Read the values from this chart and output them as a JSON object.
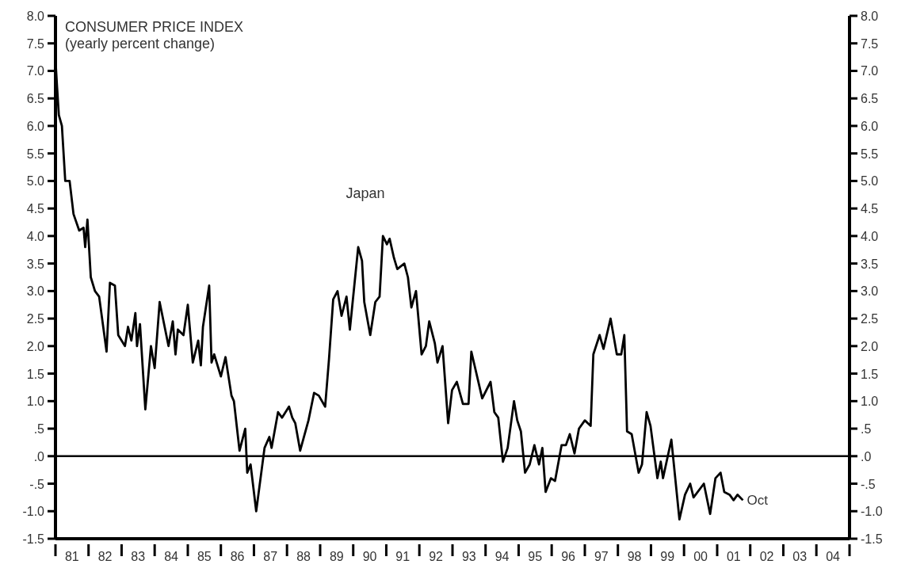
{
  "chart_data": {
    "type": "line",
    "title": "CONSUMER PRICE INDEX",
    "subtitle": "(yearly percent change)",
    "annotations": [
      {
        "text": "Oct",
        "x": "2001-10-12",
        "y": -0.8
      }
    ],
    "series": [
      {
        "name": "Japan",
        "color": "#000000",
        "x": [
          "1981-01-01",
          "1981-01-19",
          "1981-02-07",
          "1981-03-13",
          "1981-04-19",
          "1981-06-06",
          "1981-07-19",
          "1981-09-20",
          "1981-11-07",
          "1981-11-25",
          "1981-12-20",
          "1982-01-26",
          "1982-03-13",
          "1982-04-28",
          "1982-07-19",
          "1982-08-25",
          "1982-10-19",
          "1982-11-25",
          "1983-02-07",
          "1983-03-13",
          "1983-04-19",
          "1983-06-02",
          "1983-06-20",
          "1983-07-23",
          "1983-09-20",
          "1983-11-21",
          "1984-01-01",
          "1984-02-25",
          "1984-06-02",
          "1984-07-19",
          "1984-08-18",
          "1984-09-13",
          "1984-11-14",
          "1985-01-01",
          "1985-02-25",
          "1985-04-26",
          "1985-05-25",
          "1985-06-17",
          "1985-08-25",
          "1985-09-20",
          "1985-10-19",
          "1986-01-01",
          "1986-02-21",
          "1986-04-28",
          "1986-05-25",
          "1986-07-26",
          "1986-09-27",
          "1986-10-19",
          "1986-11-25",
          "1987-01-26",
          "1987-04-28",
          "1987-06-20",
          "1987-07-15",
          "1987-09-24",
          "1987-11-07",
          "1988-01-23",
          "1988-02-28",
          "1988-04-01",
          "1988-05-25",
          "1988-08-25",
          "1988-10-26",
          "1988-12-17",
          "1989-02-25",
          "1989-04-08",
          "1989-05-25",
          "1989-07-12",
          "1989-08-25",
          "1989-10-19",
          "1989-11-25",
          "1990-02-25",
          "1990-04-08",
          "1990-05-03",
          "1990-07-08",
          "1990-09-02",
          "1990-10-19",
          "1990-11-25",
          "1991-01-08",
          "1991-02-07",
          "1991-03-27",
          "1991-05-03",
          "1991-07-19",
          "1991-08-28",
          "1991-10-05",
          "1991-11-25",
          "1992-01-26",
          "1992-03-13",
          "1992-04-19",
          "1992-06-20",
          "1992-07-19",
          "1992-09-13",
          "1992-11-14",
          "1992-12-27",
          "1993-02-18",
          "1993-04-26",
          "1993-06-27",
          "1993-07-28",
          "1993-11-25",
          "1994-02-25",
          "1994-04-08",
          "1994-05-21",
          "1994-07-12",
          "1994-09-02",
          "1994-11-11",
          "1994-12-17",
          "1995-01-26",
          "1995-03-13",
          "1995-05-03",
          "1995-06-24",
          "1995-08-14",
          "1995-09-20",
          "1995-10-26",
          "1995-12-24",
          "1996-02-07",
          "1996-04-19",
          "1996-06-06",
          "1996-07-19",
          "1996-09-09",
          "1996-10-28",
          "1997-01-01",
          "1997-03-06",
          "1997-04-05",
          "1997-06-13",
          "1997-07-26",
          "1997-10-12",
          "1997-12-20",
          "1998-02-07",
          "1998-03-13",
          "1998-04-12",
          "1998-06-02",
          "1998-08-18",
          "1998-09-24",
          "1998-11-14",
          "1998-12-27",
          "1999-03-13",
          "1999-04-19",
          "1999-05-14",
          "1999-08-14",
          "1999-11-11",
          "2000-01-12",
          "2000-03-09",
          "2000-04-15",
          "2000-08-07",
          "2000-10-15",
          "2000-12-13",
          "2001-02-07",
          "2001-03-20",
          "2001-05-18",
          "2001-07-01",
          "2001-08-14",
          "2001-10-12"
        ],
        "values": [
          7.2,
          6.7,
          6.2,
          6.0,
          5.0,
          5.0,
          4.4,
          4.1,
          4.15,
          3.8,
          4.3,
          3.25,
          3.0,
          2.9,
          1.9,
          3.15,
          3.1,
          2.2,
          2.0,
          2.35,
          2.1,
          2.6,
          2.0,
          2.4,
          0.85,
          2.0,
          1.6,
          2.8,
          2.0,
          2.45,
          1.85,
          2.3,
          2.2,
          2.75,
          1.7,
          2.1,
          1.65,
          2.35,
          3.1,
          1.7,
          1.85,
          1.45,
          1.8,
          1.1,
          1.0,
          0.1,
          0.5,
          -0.3,
          -0.15,
          -1.0,
          0.15,
          0.35,
          0.15,
          0.8,
          0.7,
          0.9,
          0.7,
          0.6,
          0.1,
          0.65,
          1.15,
          1.1,
          0.9,
          1.75,
          2.85,
          3.0,
          2.55,
          2.9,
          2.3,
          3.8,
          3.55,
          2.8,
          2.2,
          2.8,
          2.9,
          4.0,
          3.85,
          3.95,
          3.6,
          3.4,
          3.5,
          3.25,
          2.7,
          3.0,
          1.85,
          2.0,
          2.45,
          2.05,
          1.7,
          2.0,
          0.6,
          1.2,
          1.35,
          0.95,
          0.95,
          1.9,
          1.05,
          1.35,
          0.8,
          0.7,
          -0.1,
          0.15,
          1.0,
          0.65,
          0.45,
          -0.3,
          -0.15,
          0.2,
          -0.15,
          0.15,
          -0.65,
          -0.4,
          -0.45,
          0.2,
          0.2,
          0.4,
          0.05,
          0.5,
          0.65,
          0.55,
          1.85,
          2.2,
          1.95,
          2.5,
          1.85,
          1.85,
          2.2,
          0.45,
          0.4,
          -0.3,
          -0.15,
          0.8,
          0.55,
          -0.4,
          -0.1,
          -0.4,
          0.3,
          -1.15,
          -0.7,
          -0.5,
          -0.75,
          -0.5,
          -1.05,
          -0.4,
          -0.3,
          -0.65,
          -0.7,
          -0.8,
          -0.7,
          -0.8
        ]
      }
    ],
    "xlim": [
      "1981-01-01",
      "2005-01-01"
    ],
    "xticks": [
      {
        "value": "1981-01-01",
        "label": null
      },
      {
        "value": "1981-07-02",
        "label": "81"
      },
      {
        "value": "1982-01-01",
        "label": null
      },
      {
        "value": "1982-07-02",
        "label": "82"
      },
      {
        "value": "1983-01-01",
        "label": null
      },
      {
        "value": "1983-07-02",
        "label": "83"
      },
      {
        "value": "1984-01-01",
        "label": null
      },
      {
        "value": "1984-07-02",
        "label": "84"
      },
      {
        "value": "1985-01-01",
        "label": null
      },
      {
        "value": "1985-07-02",
        "label": "85"
      },
      {
        "value": "1986-01-01",
        "label": null
      },
      {
        "value": "1986-07-02",
        "label": "86"
      },
      {
        "value": "1987-01-01",
        "label": null
      },
      {
        "value": "1987-07-02",
        "label": "87"
      },
      {
        "value": "1988-01-01",
        "label": null
      },
      {
        "value": "1988-07-02",
        "label": "88"
      },
      {
        "value": "1989-01-01",
        "label": null
      },
      {
        "value": "1989-07-02",
        "label": "89"
      },
      {
        "value": "1990-01-01",
        "label": null
      },
      {
        "value": "1990-07-02",
        "label": "90"
      },
      {
        "value": "1991-01-01",
        "label": null
      },
      {
        "value": "1991-07-02",
        "label": "91"
      },
      {
        "value": "1992-01-01",
        "label": null
      },
      {
        "value": "1992-07-02",
        "label": "92"
      },
      {
        "value": "1993-01-01",
        "label": null
      },
      {
        "value": "1993-07-02",
        "label": "93"
      },
      {
        "value": "1994-01-01",
        "label": null
      },
      {
        "value": "1994-07-02",
        "label": "94"
      },
      {
        "value": "1995-01-01",
        "label": null
      },
      {
        "value": "1995-07-02",
        "label": "95"
      },
      {
        "value": "1996-01-01",
        "label": null
      },
      {
        "value": "1996-07-02",
        "label": "96"
      },
      {
        "value": "1997-01-01",
        "label": null
      },
      {
        "value": "1997-07-02",
        "label": "97"
      },
      {
        "value": "1998-01-01",
        "label": null
      },
      {
        "value": "1998-07-02",
        "label": "98"
      },
      {
        "value": "1999-01-01",
        "label": null
      },
      {
        "value": "1999-07-02",
        "label": "99"
      },
      {
        "value": "2000-01-01",
        "label": null
      },
      {
        "value": "2000-07-02",
        "label": "00"
      },
      {
        "value": "2001-01-01",
        "label": null
      },
      {
        "value": "2001-07-02",
        "label": "01"
      },
      {
        "value": "2002-01-01",
        "label": null
      },
      {
        "value": "2002-07-02",
        "label": "02"
      },
      {
        "value": "2003-01-01",
        "label": null
      },
      {
        "value": "2003-07-02",
        "label": "03"
      },
      {
        "value": "2004-01-01",
        "label": null
      },
      {
        "value": "2004-07-02",
        "label": "04"
      },
      {
        "value": "2005-01-01",
        "label": null
      }
    ],
    "ylim": [
      -1.5,
      8
    ],
    "yticks": [
      {
        "value": -1.5,
        "label": "-1.5"
      },
      {
        "value": -1,
        "label": "-1.0"
      },
      {
        "value": -0.5,
        "label": "-.5"
      },
      {
        "value": 0,
        "label": ".0"
      },
      {
        "value": 0.5,
        "label": ".5"
      },
      {
        "value": 1,
        "label": "1.0"
      },
      {
        "value": 1.5,
        "label": "1.5"
      },
      {
        "value": 2,
        "label": "2.0"
      },
      {
        "value": 2.5,
        "label": "2.5"
      },
      {
        "value": 3,
        "label": "3.0"
      },
      {
        "value": 3.5,
        "label": "3.5"
      },
      {
        "value": 4,
        "label": "4.0"
      },
      {
        "value": 4.5,
        "label": "4.5"
      },
      {
        "value": 5,
        "label": "5.0"
      },
      {
        "value": 5.5,
        "label": "5.5"
      },
      {
        "value": 6,
        "label": "6.0"
      },
      {
        "value": 6.5,
        "label": "6.5"
      },
      {
        "value": 7,
        "label": "7.0"
      },
      {
        "value": 7.5,
        "label": "7.5"
      },
      {
        "value": 8,
        "label": "8.0"
      }
    ],
    "y2lim": [
      -1.5,
      8
    ],
    "y2ticks": [
      {
        "value": -1.5,
        "label": "-1.5"
      },
      {
        "value": -1,
        "label": "-1.0"
      },
      {
        "value": -0.5,
        "label": "-.5"
      },
      {
        "value": 0,
        "label": ".0"
      },
      {
        "value": 0.5,
        "label": ".5"
      },
      {
        "value": 1,
        "label": "1.0"
      },
      {
        "value": 1.5,
        "label": "1.5"
      },
      {
        "value": 2,
        "label": "2.0"
      },
      {
        "value": 2.5,
        "label": "2.5"
      },
      {
        "value": 3,
        "label": "3.0"
      },
      {
        "value": 3.5,
        "label": "3.5"
      },
      {
        "value": 4,
        "label": "4.0"
      },
      {
        "value": 4.5,
        "label": "4.5"
      },
      {
        "value": 5,
        "label": "5.0"
      },
      {
        "value": 5.5,
        "label": "5.5"
      },
      {
        "value": 6,
        "label": "6.0"
      },
      {
        "value": 6.5,
        "label": "6.5"
      },
      {
        "value": 7,
        "label": "7.0"
      },
      {
        "value": 7.5,
        "label": "7.5"
      },
      {
        "value": 8,
        "label": "8.0"
      }
    ],
    "ref_lines": [
      {
        "axis": "y",
        "value": 0,
        "color": "#000000"
      }
    ],
    "grid": false,
    "legend": false
  }
}
